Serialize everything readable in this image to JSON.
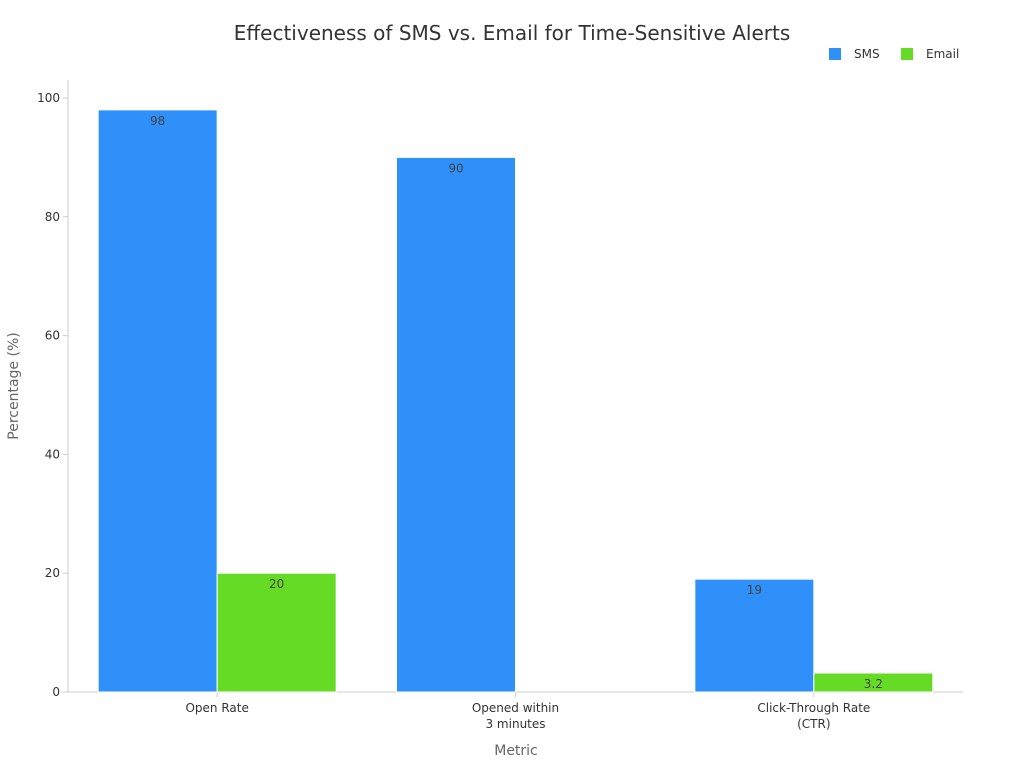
{
  "chart_data": {
    "type": "bar",
    "title": "Effectiveness of SMS vs. Email for Time-Sensitive Alerts",
    "xlabel": "Metric",
    "ylabel": "Percentage (%)",
    "categories": [
      [
        "Open Rate"
      ],
      [
        "Opened within",
        "3 minutes"
      ],
      [
        "Click-Through Rate",
        "(CTR)"
      ]
    ],
    "series": [
      {
        "name": "SMS",
        "color": "#2e90f8",
        "values": [
          98,
          90,
          19
        ],
        "labels": [
          "98",
          "90",
          "19"
        ]
      },
      {
        "name": "Email",
        "color": "#66db25",
        "values": [
          20,
          null,
          3.2
        ],
        "labels": [
          "20",
          null,
          "3.2"
        ]
      }
    ],
    "ylim": [
      0,
      103
    ],
    "yticks": [
      0,
      20,
      40,
      60,
      80,
      100
    ],
    "grid": false,
    "legend_position": "top-right"
  }
}
